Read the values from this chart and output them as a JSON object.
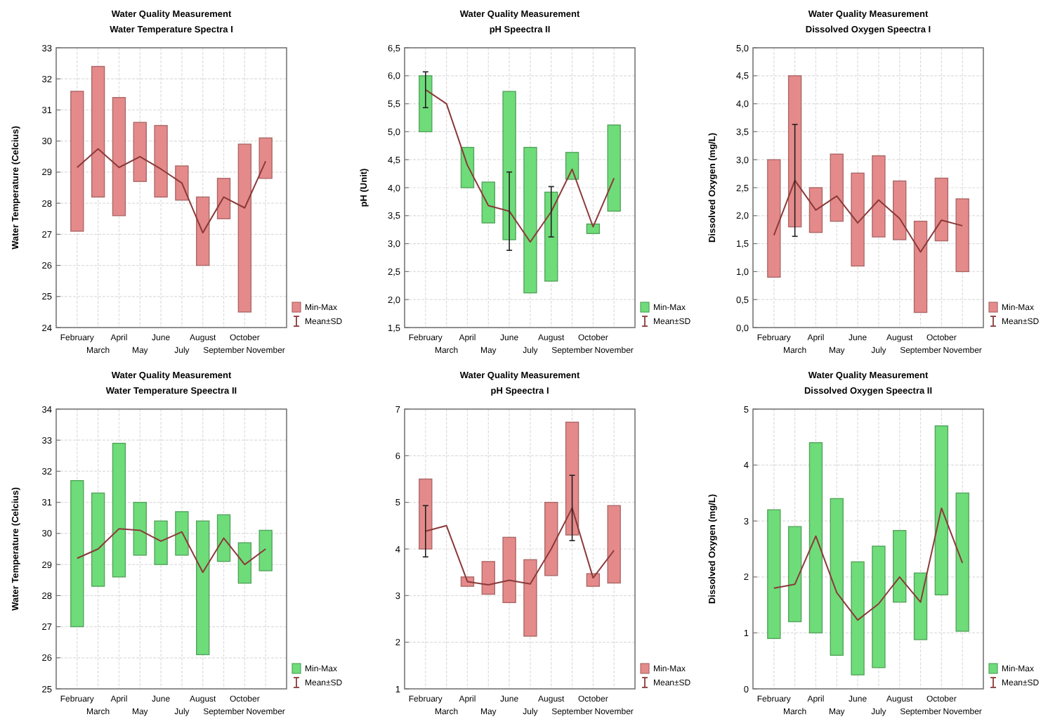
{
  "chart_data": [
    {
      "type": "bar",
      "title": "Water Quality Measurement",
      "subtitle": "Water Temperature Spectra I",
      "ylabel": "Water Temperature (Celcius)",
      "categories": [
        "February",
        "March",
        "April",
        "May",
        "June",
        "July",
        "August",
        "September",
        "October",
        "November"
      ],
      "ylim": [
        24,
        33
      ],
      "yticks": [
        24,
        25,
        26,
        27,
        28,
        29,
        30,
        31,
        32,
        33
      ],
      "grid": true,
      "legend": "bottom right",
      "series": [
        {
          "name": "Min-Max",
          "color": "#e58a8a",
          "base": [
            27.1,
            28.2,
            27.6,
            28.7,
            28.2,
            28.1,
            26.0,
            27.5,
            24.5,
            28.8
          ],
          "values": [
            4.5,
            4.2,
            3.8,
            1.9,
            2.3,
            1.1,
            2.2,
            1.3,
            5.4,
            1.3
          ]
        },
        {
          "name": "Mean±SD",
          "type": "line",
          "color": "#8b3a3a",
          "values": [
            29.15,
            29.75,
            29.15,
            29.5,
            29.1,
            28.65,
            27.05,
            28.2,
            27.85,
            29.35
          ]
        }
      ]
    },
    {
      "type": "bar",
      "title": "Water Quality Measurement",
      "subtitle": "pH Speectra II",
      "ylabel": "pH (Unit)",
      "categories": [
        "February",
        "March",
        "April",
        "May",
        "June",
        "July",
        "August",
        "September",
        "October",
        "November"
      ],
      "ylim": [
        1.5,
        6.5
      ],
      "yticks": [
        {
          "value": 1.5,
          "label": "1,5"
        },
        {
          "value": 2,
          "label": "2,0"
        },
        {
          "value": 2.5,
          "label": "2,5"
        },
        {
          "value": 3,
          "label": "3,0"
        },
        {
          "value": 3.5,
          "label": "3,5"
        },
        {
          "value": 4,
          "label": "4,0"
        },
        {
          "value": 4.5,
          "label": "4,5"
        },
        {
          "value": 5,
          "label": "5,0"
        },
        {
          "value": 5.5,
          "label": "5,5"
        },
        {
          "value": 6,
          "label": "6,0"
        },
        {
          "value": 6.5,
          "label": "6,5"
        }
      ],
      "grid": true,
      "legend": "bottom right",
      "series": [
        {
          "name": "Min-Max",
          "color": "#6fdc7a",
          "base": [
            5.0,
            null,
            4.0,
            3.37,
            3.07,
            2.12,
            2.33,
            4.15,
            3.18,
            3.58
          ],
          "values": [
            1.0,
            null,
            0.72,
            0.73,
            2.65,
            2.6,
            1.59,
            0.48,
            0.17,
            1.54
          ]
        },
        {
          "name": "Mean±SD",
          "type": "line",
          "color": "#8b3a3a",
          "values": [
            5.75,
            5.5,
            4.4,
            3.68,
            3.58,
            3.03,
            3.57,
            4.33,
            3.3,
            4.17
          ],
          "errors": [
            0.32,
            null,
            null,
            null,
            0.7,
            null,
            0.45,
            null,
            null,
            null
          ]
        }
      ]
    },
    {
      "type": "bar",
      "title": "Water Quality Measurement",
      "subtitle": "Dissolved Oxygen Speectra I",
      "ylabel": "Dissolved Oxygen (mg/L)",
      "categories": [
        "February",
        "March",
        "April",
        "May",
        "June",
        "July",
        "August",
        "September",
        "October",
        "November"
      ],
      "ylim": [
        0,
        5
      ],
      "yticks": [
        {
          "value": 0,
          "label": "0,0"
        },
        {
          "value": 0.5,
          "label": "0,5"
        },
        {
          "value": 1,
          "label": "1,0"
        },
        {
          "value": 1.5,
          "label": "1,5"
        },
        {
          "value": 2,
          "label": "2,0"
        },
        {
          "value": 2.5,
          "label": "2,5"
        },
        {
          "value": 3,
          "label": "3,0"
        },
        {
          "value": 3.5,
          "label": "3,5"
        },
        {
          "value": 4,
          "label": "4,0"
        },
        {
          "value": 4.5,
          "label": "4,5"
        },
        {
          "value": 5,
          "label": "5,0"
        }
      ],
      "grid": true,
      "legend": "bottom right",
      "series": [
        {
          "name": "Min-Max",
          "color": "#e58a8a",
          "base": [
            0.9,
            1.8,
            1.7,
            1.9,
            1.1,
            1.62,
            1.57,
            0.27,
            1.55,
            1.0
          ],
          "values": [
            2.1,
            2.7,
            0.8,
            1.2,
            1.66,
            1.45,
            1.05,
            1.63,
            1.12,
            1.3
          ]
        },
        {
          "name": "Mean±SD",
          "type": "line",
          "color": "#8b3a3a",
          "values": [
            1.65,
            2.63,
            2.1,
            2.35,
            1.87,
            2.28,
            1.95,
            1.35,
            1.92,
            1.82
          ],
          "errors": [
            null,
            1.0,
            null,
            null,
            null,
            null,
            null,
            null,
            null,
            null
          ]
        }
      ]
    },
    {
      "type": "bar",
      "title": "Water Quality Measurement",
      "subtitle": "Water Temperature Speectra II",
      "ylabel": "Water Temperature (Celcius)",
      "categories": [
        "February",
        "March",
        "April",
        "May",
        "June",
        "July",
        "August",
        "September",
        "October",
        "November"
      ],
      "ylim": [
        25,
        34
      ],
      "yticks": [
        25,
        26,
        27,
        28,
        29,
        30,
        31,
        32,
        33,
        34
      ],
      "grid": true,
      "legend": "bottom right",
      "series": [
        {
          "name": "Min-Max",
          "color": "#6fdc7a",
          "base": [
            27.0,
            28.3,
            28.6,
            29.3,
            29.0,
            29.3,
            26.1,
            29.1,
            28.4,
            28.8
          ],
          "values": [
            4.7,
            3.0,
            4.3,
            1.7,
            1.4,
            1.4,
            4.3,
            1.5,
            1.3,
            1.3
          ]
        },
        {
          "name": "Mean±SD",
          "type": "line",
          "color": "#8b3a3a",
          "values": [
            29.2,
            29.5,
            30.15,
            30.1,
            29.75,
            30.05,
            28.75,
            29.85,
            29.0,
            29.5
          ]
        }
      ]
    },
    {
      "type": "bar",
      "title": "Water Quality Measurement",
      "subtitle": "pH Speectra I",
      "categories": [
        "February",
        "March",
        "April",
        "May",
        "June",
        "July",
        "August",
        "September",
        "October",
        "November"
      ],
      "ylim": [
        1,
        7
      ],
      "yticks": [
        1,
        2,
        3,
        4,
        5,
        6,
        7
      ],
      "grid": true,
      "legend": "bottom right",
      "series": [
        {
          "name": "Min-Max",
          "color": "#e58a8a",
          "base": [
            4.0,
            null,
            3.2,
            3.03,
            2.85,
            2.13,
            3.43,
            4.3,
            3.2,
            3.27
          ],
          "values": [
            1.5,
            null,
            0.2,
            0.7,
            1.4,
            1.64,
            1.57,
            2.42,
            0.27,
            1.66
          ]
        },
        {
          "name": "Mean±SD",
          "type": "line",
          "color": "#8b3a3a",
          "values": [
            4.38,
            4.5,
            3.3,
            3.23,
            3.33,
            3.25,
            4.0,
            4.88,
            3.38,
            3.97
          ],
          "errors": [
            0.55,
            null,
            null,
            null,
            null,
            null,
            null,
            0.7,
            null,
            null
          ]
        }
      ]
    },
    {
      "type": "bar",
      "title": "Water Quality Measurement",
      "subtitle": "Dissolved Oxygen Speectra II",
      "ylabel": "Dissolved Oxygen (mg/L)",
      "categories": [
        "February",
        "March",
        "April",
        "May",
        "June",
        "July",
        "August",
        "September",
        "October",
        "November"
      ],
      "ylim": [
        0,
        5
      ],
      "yticks": [
        0,
        1,
        2,
        3,
        4,
        5
      ],
      "grid": true,
      "legend": "bottom right",
      "series": [
        {
          "name": "Min-Max",
          "color": "#6fdc7a",
          "base": [
            0.9,
            1.2,
            1.0,
            0.6,
            0.25,
            0.38,
            1.55,
            0.88,
            1.68,
            1.03
          ],
          "values": [
            2.3,
            1.7,
            3.4,
            2.8,
            2.02,
            2.17,
            1.28,
            1.19,
            3.02,
            2.47
          ]
        },
        {
          "name": "Mean±SD",
          "type": "line",
          "color": "#8b3a3a",
          "values": [
            1.8,
            1.87,
            2.73,
            1.72,
            1.23,
            1.52,
            2.0,
            1.55,
            3.23,
            2.25
          ]
        }
      ]
    }
  ]
}
